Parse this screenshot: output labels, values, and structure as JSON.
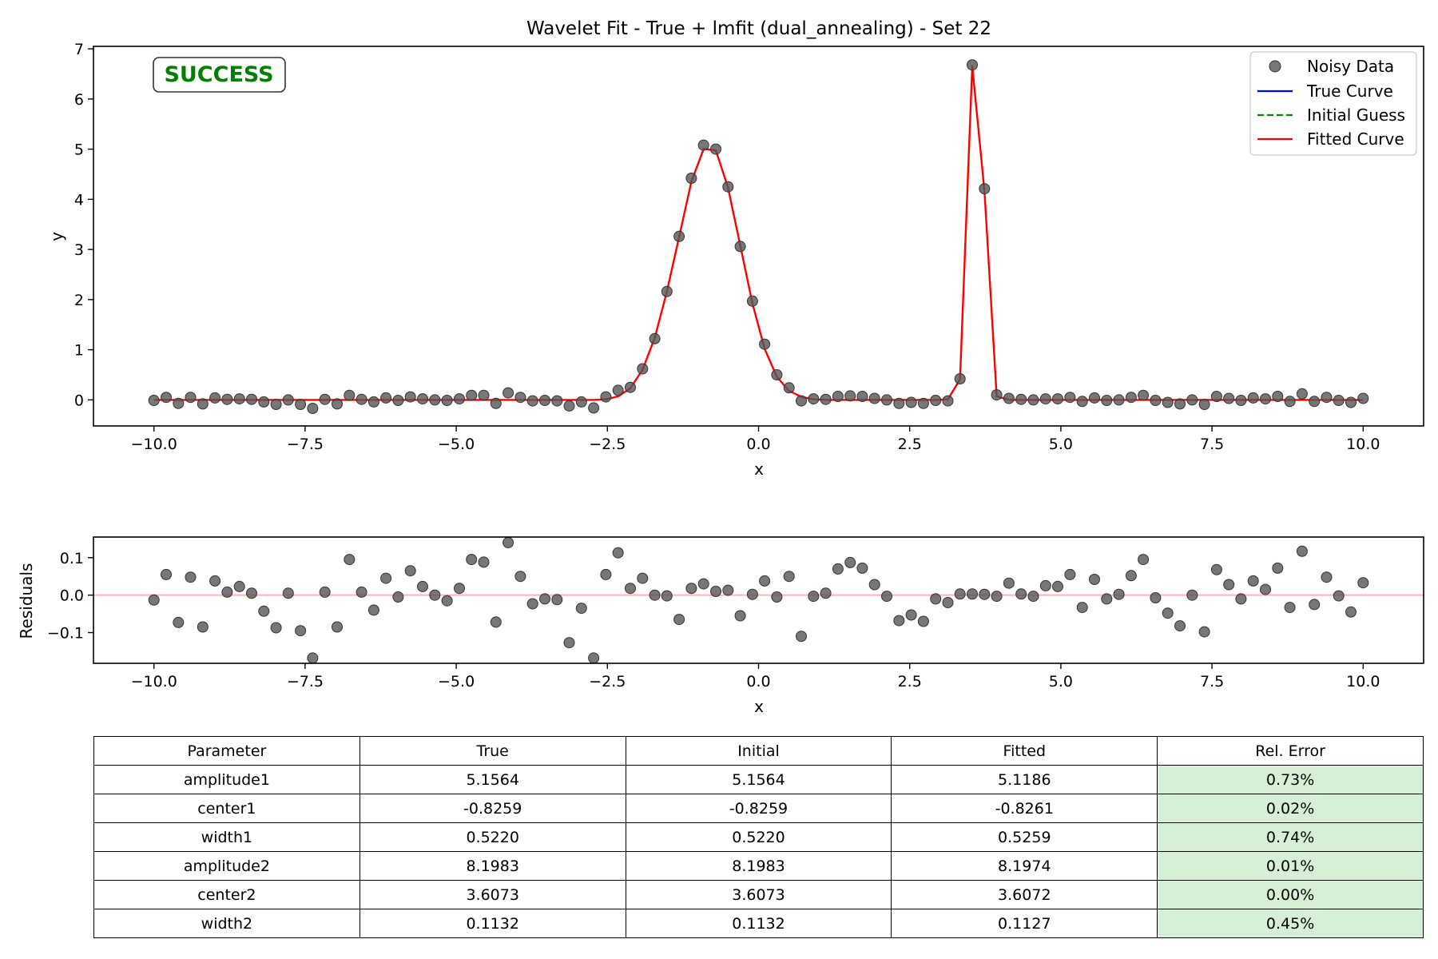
{
  "chart_data": [
    {
      "type": "line",
      "title": "Wavelet Fit - True + lmfit (dual_annealing) - Set 22",
      "xlabel": "x",
      "ylabel": "y",
      "xlim": [
        -11.0,
        11.0
      ],
      "ylim": [
        -0.52,
        7.05
      ],
      "xticks": [
        -10.0,
        -7.5,
        -5.0,
        -2.5,
        0.0,
        2.5,
        5.0,
        7.5,
        10.0
      ],
      "xtick_labels": [
        "−10.0",
        "−7.5",
        "−5.0",
        "−2.5",
        "0.0",
        "2.5",
        "5.0",
        "7.5",
        "10.0"
      ],
      "yticks": [
        0,
        1,
        2,
        3,
        4,
        5,
        6,
        7
      ],
      "ytick_labels": [
        "0",
        "1",
        "2",
        "3",
        "4",
        "5",
        "6",
        "7"
      ],
      "grid": false,
      "legend_position": "top-right",
      "status_badge": {
        "text": "SUCCESS",
        "color": "#008000"
      },
      "series": [
        {
          "name": "Noisy Data",
          "kind": "scatter",
          "color": "#555555",
          "x": [
            -10.0,
            -9.798,
            -9.596,
            -9.394,
            -9.192,
            -8.99,
            -8.788,
            -8.586,
            -8.384,
            -8.182,
            -7.98,
            -7.778,
            -7.576,
            -7.374,
            -7.172,
            -6.97,
            -6.768,
            -6.566,
            -6.364,
            -6.162,
            -5.96,
            -5.758,
            -5.556,
            -5.354,
            -5.152,
            -4.949,
            -4.747,
            -4.545,
            -4.343,
            -4.141,
            -3.939,
            -3.737,
            -3.535,
            -3.333,
            -3.131,
            -2.929,
            -2.727,
            -2.525,
            -2.323,
            -2.121,
            -1.919,
            -1.717,
            -1.515,
            -1.313,
            -1.111,
            -0.909,
            -0.707,
            -0.505,
            -0.303,
            -0.101,
            0.101,
            0.303,
            0.505,
            0.707,
            0.909,
            1.111,
            1.313,
            1.515,
            1.717,
            1.919,
            2.121,
            2.323,
            2.525,
            2.727,
            2.929,
            3.131,
            3.333,
            3.535,
            3.737,
            3.939,
            4.141,
            4.343,
            4.545,
            4.747,
            4.949,
            5.152,
            5.354,
            5.556,
            5.758,
            5.96,
            6.162,
            6.364,
            6.566,
            6.768,
            6.97,
            7.172,
            7.374,
            7.576,
            7.778,
            7.98,
            8.182,
            8.384,
            8.586,
            8.788,
            8.99,
            9.192,
            9.394,
            9.596,
            9.798,
            10.0
          ],
          "y": [
            -0.01,
            0.05,
            -0.07,
            0.05,
            -0.08,
            0.04,
            0.01,
            0.02,
            0.01,
            -0.04,
            -0.09,
            0.0,
            -0.09,
            -0.17,
            0.01,
            -0.08,
            0.09,
            0.01,
            -0.04,
            0.04,
            -0.01,
            0.06,
            0.02,
            0.0,
            -0.01,
            0.02,
            0.09,
            0.09,
            -0.07,
            0.14,
            0.05,
            -0.02,
            -0.01,
            -0.02,
            -0.12,
            -0.04,
            -0.16,
            0.06,
            0.19,
            0.25,
            0.62,
            1.22,
            2.16,
            3.26,
            4.42,
            5.08,
            5.0,
            4.25,
            3.06,
            1.97,
            1.11,
            0.5,
            0.24,
            -0.02,
            0.02,
            0.01,
            0.07,
            0.08,
            0.07,
            0.03,
            0.0,
            -0.07,
            -0.05,
            -0.07,
            -0.01,
            -0.02,
            0.42,
            6.68,
            4.21,
            0.1,
            0.03,
            0.01,
            0.0,
            0.02,
            0.02,
            0.05,
            -0.03,
            0.04,
            -0.01,
            0.0,
            0.05,
            0.09,
            -0.01,
            -0.05,
            -0.08,
            0.0,
            -0.09,
            0.07,
            0.03,
            -0.01,
            0.04,
            0.02,
            0.07,
            -0.03,
            0.12,
            -0.03,
            0.05,
            -0.01,
            -0.05,
            0.03
          ]
        },
        {
          "name": "True Curve",
          "kind": "line",
          "color": "#0000ff"
        },
        {
          "name": "Initial Guess",
          "kind": "dashed-line",
          "color": "#008000"
        },
        {
          "name": "Fitted Curve",
          "kind": "line",
          "color": "#ff0000",
          "x": [
            -10.0,
            -9.798,
            -9.596,
            -9.394,
            -9.192,
            -8.99,
            -8.788,
            -8.586,
            -8.384,
            -8.182,
            -7.98,
            -7.778,
            -7.576,
            -7.374,
            -7.172,
            -6.97,
            -6.768,
            -6.566,
            -6.364,
            -6.162,
            -5.96,
            -5.758,
            -5.556,
            -5.354,
            -5.152,
            -4.949,
            -4.747,
            -4.545,
            -4.343,
            -4.141,
            -3.939,
            -3.737,
            -3.535,
            -3.333,
            -3.131,
            -2.929,
            -2.727,
            -2.525,
            -2.323,
            -2.121,
            -1.919,
            -1.717,
            -1.515,
            -1.313,
            -1.111,
            -0.909,
            -0.707,
            -0.505,
            -0.303,
            -0.101,
            0.101,
            0.303,
            0.505,
            0.707,
            0.909,
            1.111,
            1.313,
            1.515,
            1.717,
            1.919,
            2.121,
            2.323,
            2.525,
            2.727,
            2.929,
            3.131,
            3.333,
            3.535,
            3.737,
            3.939,
            4.141,
            4.343,
            4.545,
            4.747,
            4.949,
            5.152,
            5.354,
            5.556,
            5.758,
            5.96,
            6.162,
            6.364,
            6.566,
            6.768,
            6.97,
            7.172,
            7.374,
            7.576,
            7.778,
            7.98,
            8.182,
            8.384,
            8.586,
            8.788,
            8.99,
            9.192,
            9.394,
            9.596,
            9.798,
            10.0
          ],
          "y": [
            0.0,
            0.0,
            0.0,
            0.0,
            0.0,
            0.0,
            0.0,
            0.0,
            0.0,
            0.0,
            0.0,
            0.0,
            0.0,
            0.0,
            0.0,
            0.0,
            0.0,
            0.0,
            0.0,
            0.0,
            0.0,
            0.0,
            0.0,
            0.0,
            0.0,
            0.0,
            0.0,
            0.0,
            0.0,
            0.0,
            0.0,
            0.0,
            0.0,
            0.0,
            0.0,
            0.0,
            0.0,
            0.01,
            0.07,
            0.23,
            0.6,
            1.24,
            2.16,
            3.25,
            4.35,
            5.0,
            4.98,
            4.23,
            3.08,
            1.92,
            1.02,
            0.46,
            0.18,
            0.06,
            0.01,
            0.0,
            0.0,
            0.0,
            0.0,
            0.0,
            0.0,
            0.0,
            0.0,
            0.0,
            0.0,
            0.01,
            0.41,
            6.66,
            4.16,
            0.07,
            0.0,
            0.0,
            0.0,
            0.0,
            0.0,
            0.0,
            0.0,
            0.0,
            0.0,
            0.0,
            0.0,
            0.0,
            0.0,
            0.0,
            0.0,
            0.0,
            0.0,
            0.0,
            0.0,
            0.0,
            0.0,
            0.0,
            0.0,
            0.0,
            0.0,
            0.0,
            0.0,
            0.0,
            0.0,
            0.0
          ]
        }
      ]
    },
    {
      "type": "scatter",
      "title": "",
      "xlabel": "x",
      "ylabel": "Residuals",
      "xlim": [
        -11.0,
        11.0
      ],
      "ylim": [
        -0.182,
        0.155
      ],
      "xticks": [
        -10.0,
        -7.5,
        -5.0,
        -2.5,
        0.0,
        2.5,
        5.0,
        7.5,
        10.0
      ],
      "xtick_labels": [
        "−10.0",
        "−7.5",
        "−5.0",
        "−2.5",
        "0.0",
        "2.5",
        "5.0",
        "7.5",
        "10.0"
      ],
      "yticks": [
        -0.1,
        0.0,
        0.1
      ],
      "ytick_labels": [
        "−0.1",
        "0.0",
        "0.1"
      ],
      "grid": false,
      "reference_line": {
        "y": 0.0,
        "color": "#ffb3b3"
      },
      "series": [
        {
          "kind": "scatter",
          "color": "#555555",
          "x": [
            -10.0,
            -9.798,
            -9.596,
            -9.394,
            -9.192,
            -8.99,
            -8.788,
            -8.586,
            -8.384,
            -8.182,
            -7.98,
            -7.778,
            -7.576,
            -7.374,
            -7.172,
            -6.97,
            -6.768,
            -6.566,
            -6.364,
            -6.162,
            -5.96,
            -5.758,
            -5.556,
            -5.354,
            -5.152,
            -4.949,
            -4.747,
            -4.545,
            -4.343,
            -4.141,
            -3.939,
            -3.737,
            -3.535,
            -3.333,
            -3.131,
            -2.929,
            -2.727,
            -2.525,
            -2.323,
            -2.121,
            -1.919,
            -1.717,
            -1.515,
            -1.313,
            -1.111,
            -0.909,
            -0.707,
            -0.505,
            -0.303,
            -0.101,
            0.101,
            0.303,
            0.505,
            0.707,
            0.909,
            1.111,
            1.313,
            1.515,
            1.717,
            1.919,
            2.121,
            2.323,
            2.525,
            2.727,
            2.929,
            3.131,
            3.333,
            3.535,
            3.737,
            3.939,
            4.141,
            4.343,
            4.545,
            4.747,
            4.949,
            5.152,
            5.354,
            5.556,
            5.758,
            5.96,
            6.162,
            6.364,
            6.566,
            6.768,
            6.97,
            7.172,
            7.374,
            7.576,
            7.778,
            7.98,
            8.182,
            8.384,
            8.586,
            8.788,
            8.99,
            9.192,
            9.394,
            9.596,
            9.798,
            10.0
          ],
          "y": [
            -0.013,
            0.055,
            -0.073,
            0.048,
            -0.085,
            0.038,
            0.008,
            0.023,
            0.005,
            -0.043,
            -0.087,
            0.005,
            -0.095,
            -0.168,
            0.008,
            -0.085,
            0.095,
            0.008,
            -0.04,
            0.045,
            -0.005,
            0.065,
            0.023,
            0.0,
            -0.015,
            0.018,
            0.095,
            0.088,
            -0.072,
            0.14,
            0.05,
            -0.023,
            -0.01,
            -0.012,
            -0.127,
            -0.035,
            -0.168,
            0.055,
            0.113,
            0.018,
            0.045,
            0.0,
            -0.002,
            -0.065,
            0.018,
            0.03,
            0.01,
            0.013,
            -0.055,
            0.002,
            0.038,
            -0.005,
            0.05,
            -0.11,
            -0.003,
            0.005,
            0.07,
            0.087,
            0.072,
            0.028,
            -0.003,
            -0.068,
            -0.053,
            -0.07,
            -0.01,
            -0.02,
            0.003,
            0.003,
            0.002,
            -0.003,
            0.032,
            0.003,
            -0.003,
            0.025,
            0.023,
            0.055,
            -0.033,
            0.042,
            -0.01,
            0.002,
            0.052,
            0.095,
            -0.007,
            -0.048,
            -0.082,
            0.0,
            -0.098,
            0.068,
            0.028,
            -0.01,
            0.038,
            0.015,
            0.072,
            -0.033,
            0.117,
            -0.025,
            0.048,
            -0.002,
            -0.045,
            0.033
          ]
        }
      ]
    }
  ],
  "table": {
    "headers": [
      "Parameter",
      "True",
      "Initial",
      "Fitted",
      "Rel. Error"
    ],
    "rows": [
      [
        "amplitude1",
        "5.1564",
        "5.1564",
        "5.1186",
        "0.73%"
      ],
      [
        "center1",
        "-0.8259",
        "-0.8259",
        "-0.8261",
        "0.02%"
      ],
      [
        "width1",
        "0.5220",
        "0.5220",
        "0.5259",
        "0.74%"
      ],
      [
        "amplitude2",
        "8.1983",
        "8.1983",
        "8.1974",
        "0.01%"
      ],
      [
        "center2",
        "3.6073",
        "3.6073",
        "3.6072",
        "0.00%"
      ],
      [
        "width2",
        "0.1132",
        "0.1132",
        "0.1127",
        "0.45%"
      ]
    ],
    "error_cell_color": "#d6f0d8"
  }
}
